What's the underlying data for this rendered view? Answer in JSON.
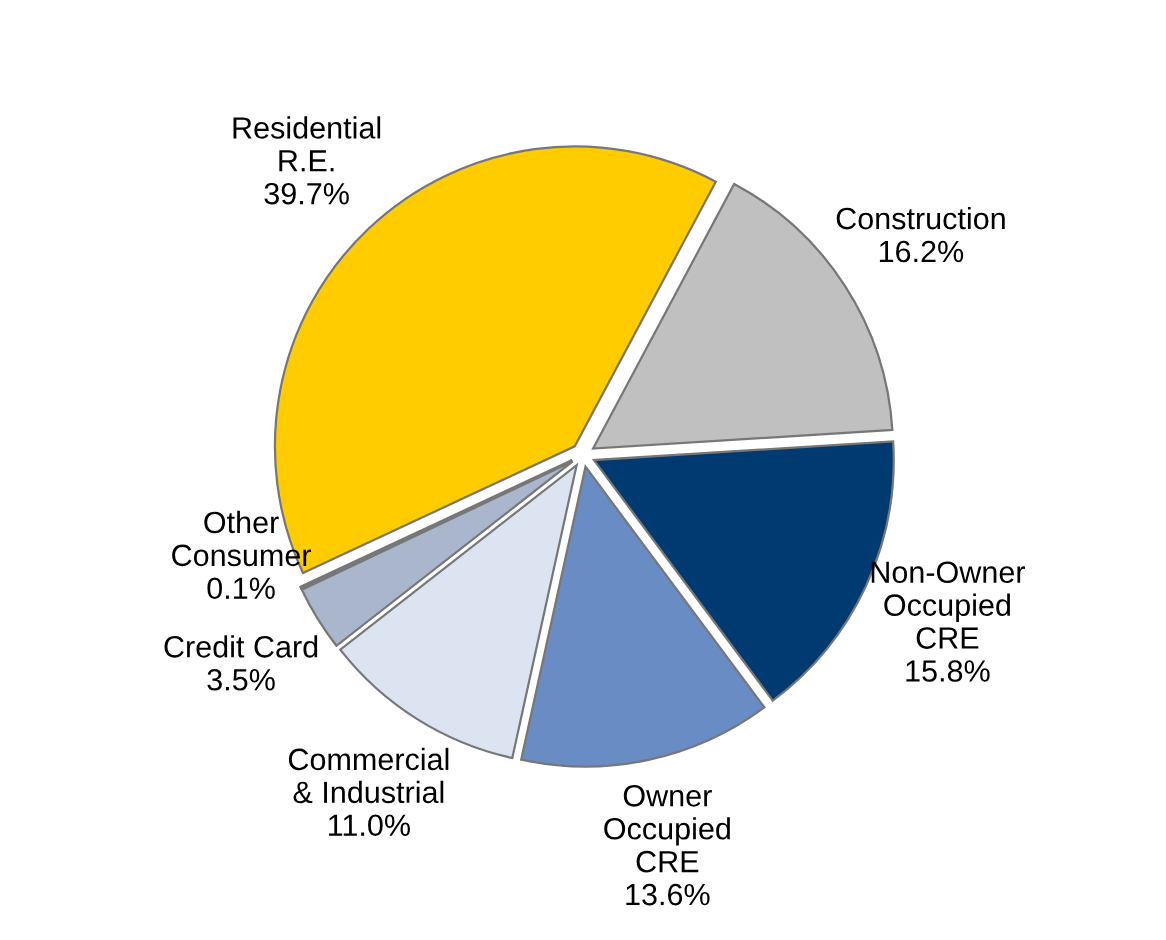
{
  "chart_data": {
    "type": "pie",
    "categories": [
      "Residential\nR.E.",
      "Construction",
      "Non-Owner\nOccupied\nCRE",
      "Owner\nOccupied\nCRE",
      "Commercial\n& Industrial",
      "Credit Card",
      "Other\nConsumer"
    ],
    "values": [
      39.7,
      16.2,
      15.8,
      13.6,
      11.0,
      3.5,
      0.1
    ],
    "value_labels": [
      "39.7%",
      "16.2%",
      "15.8%",
      "13.6%",
      "11.0%",
      "3.5%",
      "0.1%"
    ],
    "colors": [
      "#ffcc00",
      "#c0c0c0",
      "#003a70",
      "#6a8cc4",
      "#dce4f2",
      "#a9b6cc",
      "#1a1a1a"
    ]
  }
}
